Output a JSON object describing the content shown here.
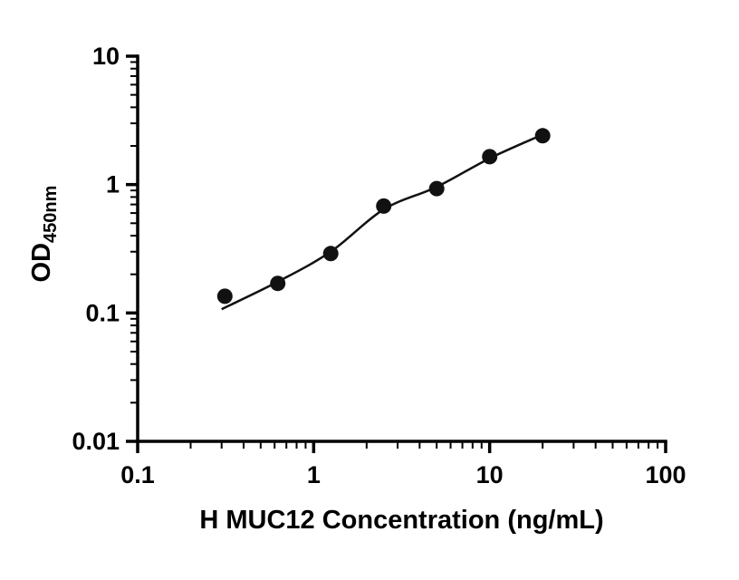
{
  "figure": {
    "background_color": "#ffffff"
  },
  "chart_data": {
    "type": "scatter",
    "title": "",
    "xlabel": "H MUC12 Concentration (ng/mL)",
    "ylabel_main": "OD",
    "ylabel_sub": "450nm",
    "x_scale": "log",
    "y_scale": "log",
    "xlim": [
      0.1,
      100
    ],
    "ylim": [
      0.01,
      10
    ],
    "x_ticks": [
      0.1,
      1,
      10,
      100
    ],
    "x_tick_labels": [
      "0.1",
      "1",
      "10",
      "100"
    ],
    "y_ticks": [
      0.01,
      0.1,
      1,
      10
    ],
    "y_tick_labels": [
      "0.01",
      "0.1",
      "1",
      "10"
    ],
    "grid": false,
    "legend": "none",
    "axis_color": "#000000",
    "marker_color": "#111111",
    "line_color": "#111111",
    "points": [
      {
        "x": 0.313,
        "y": 0.135
      },
      {
        "x": 0.625,
        "y": 0.17
      },
      {
        "x": 1.25,
        "y": 0.29
      },
      {
        "x": 2.5,
        "y": 0.68
      },
      {
        "x": 5,
        "y": 0.93
      },
      {
        "x": 10,
        "y": 1.65
      },
      {
        "x": 20,
        "y": 2.4
      }
    ],
    "fit_curve": [
      {
        "x": 0.3,
        "y": 0.107
      },
      {
        "x": 0.625,
        "y": 0.175
      },
      {
        "x": 1.25,
        "y": 0.3
      },
      {
        "x": 2.5,
        "y": 0.64
      },
      {
        "x": 5,
        "y": 0.96
      },
      {
        "x": 10,
        "y": 1.6
      },
      {
        "x": 20,
        "y": 2.45
      }
    ]
  }
}
